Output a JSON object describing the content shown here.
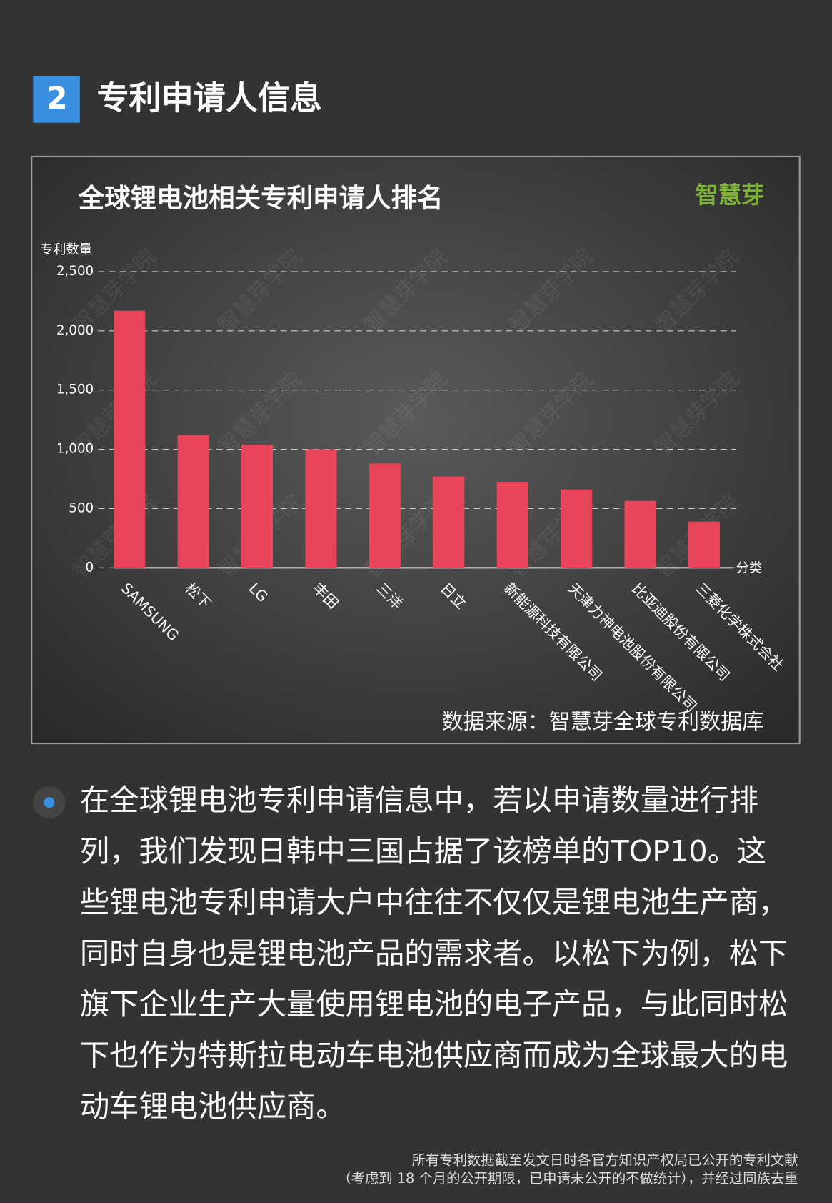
{
  "header": {
    "number": "2",
    "title": "专利申请人信息"
  },
  "chart_data": {
    "type": "bar",
    "title": "全球锂电池相关专利申请人排名",
    "logo": "智慧芽",
    "watermark": "智慧芽学院",
    "y_label": "专利数量",
    "x_label": "分类",
    "categories": [
      "SAMSUNG",
      "松下",
      "LG",
      "丰田",
      "三洋",
      "日立",
      "新能源科技有限公司",
      "天津力神电池股份有限公司",
      "比亚迪股份有限公司",
      "三菱化学株式会社"
    ],
    "values": [
      2170,
      1120,
      1040,
      1000,
      880,
      770,
      725,
      660,
      565,
      390
    ],
    "color": "#e8455a",
    "ylim": [
      0,
      2500
    ],
    "yticks": [
      0,
      500,
      {
        "value": 1000,
        "label": "1,000"
      },
      {
        "value": 1500,
        "label": "1,500"
      },
      {
        "value": 2000,
        "label": "2,000"
      },
      {
        "value": 2500,
        "label": "2,500"
      }
    ],
    "grid": true,
    "source": "数据来源：智慧芽全球专利数据库"
  },
  "body": {
    "lines": [
      "在全球锂电池专利申请信息中，若以申请数量进行排",
      "列，我们发现日韩中三国占据了该榜单的TOP10。这",
      "些锂电池专利申请大户中往往不仅仅是锂电池生产商，",
      "同时自身也是锂电池产品的需求者。以松下为例，松下",
      "旗下企业生产大量使用锂电池的电子产品，与此同时松",
      "下也作为特斯拉电动车电池供应商而成为全球最大的电",
      "动车锂电池供应商。"
    ]
  },
  "footnote": {
    "lines": [
      "所有专利数据截至发文日时各官方知识产权局已公开的专利文献",
      "（考虑到 18 个月的公开期限，已申请未公开的不做统计），并经过同族去重"
    ]
  }
}
